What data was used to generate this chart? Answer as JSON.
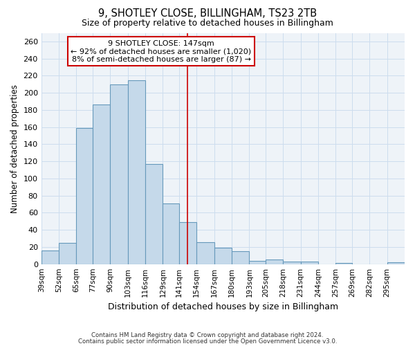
{
  "title": "9, SHOTLEY CLOSE, BILLINGHAM, TS23 2TB",
  "subtitle": "Size of property relative to detached houses in Billingham",
  "xlabel": "Distribution of detached houses by size in Billingham",
  "ylabel": "Number of detached properties",
  "categories": [
    "39sqm",
    "52sqm",
    "65sqm",
    "77sqm",
    "90sqm",
    "103sqm",
    "116sqm",
    "129sqm",
    "141sqm",
    "154sqm",
    "167sqm",
    "180sqm",
    "193sqm",
    "205sqm",
    "218sqm",
    "231sqm",
    "244sqm",
    "257sqm",
    "269sqm",
    "282sqm",
    "295sqm"
  ],
  "bar_edges": [
    39,
    52,
    65,
    77,
    90,
    103,
    116,
    129,
    141,
    154,
    167,
    180,
    193,
    205,
    218,
    231,
    244,
    257,
    269,
    282,
    295,
    308
  ],
  "bar_heights": [
    16,
    25,
    159,
    186,
    210,
    215,
    117,
    71,
    49,
    26,
    19,
    15,
    4,
    5,
    3,
    3,
    0,
    1,
    0,
    0,
    2
  ],
  "bar_color": "#c5d9ea",
  "bar_edge_color": "#6699bb",
  "vline_x": 147,
  "vline_color": "#cc0000",
  "ylim": [
    0,
    270
  ],
  "yticks": [
    0,
    20,
    40,
    60,
    80,
    100,
    120,
    140,
    160,
    180,
    200,
    220,
    240,
    260
  ],
  "annotation_title": "9 SHOTLEY CLOSE: 147sqm",
  "annotation_line1": "← 92% of detached houses are smaller (1,020)",
  "annotation_line2": "8% of semi-detached houses are larger (87) →",
  "annotation_box_facecolor": "#ffffff",
  "annotation_box_edgecolor": "#cc0000",
  "grid_color": "#ccddee",
  "bg_color": "#ffffff",
  "plot_bg_color": "#eef3f8",
  "footer1": "Contains HM Land Registry data © Crown copyright and database right 2024.",
  "footer2": "Contains public sector information licensed under the Open Government Licence v3.0."
}
